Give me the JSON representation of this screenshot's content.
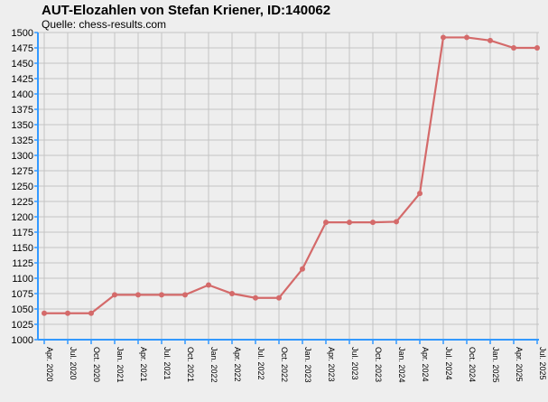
{
  "chart_data": {
    "type": "line",
    "title": "AUT-Elozahlen von Stefan Kriener, ID:140062",
    "subtitle": "Quelle: chess-results.com",
    "xlabel": "",
    "ylabel": "",
    "categories": [
      "Apr. 2020",
      "Jul. 2020",
      "Oct. 2020",
      "Jan. 2021",
      "Apr. 2021",
      "Jul. 2021",
      "Oct. 2021",
      "Jan. 2022",
      "Apr. 2022",
      "Jul. 2022",
      "Oct. 2022",
      "Jan. 2023",
      "Apr. 2023",
      "Jul. 2023",
      "Oct. 2023",
      "Jan. 2024",
      "Apr. 2024",
      "Jul. 2024",
      "Oct. 2024",
      "Jan. 2025",
      "Apr. 2025",
      "Jul. 2025"
    ],
    "series": [
      {
        "values": [
          1043,
          1043,
          1043,
          1073,
          1073,
          1073,
          1073,
          1089,
          1075,
          1068,
          1068,
          1115,
          1191,
          1191,
          1191,
          1192,
          1238,
          1492,
          1492,
          1487,
          1475,
          1475
        ]
      }
    ],
    "ylim": [
      1000,
      1500
    ],
    "ytick_step": 25,
    "grid": true,
    "colors": {
      "line": "#d46a6a",
      "grid": "#c4c4c4",
      "axis": "#3399ff",
      "plot_bg": "#eeeeee"
    }
  }
}
